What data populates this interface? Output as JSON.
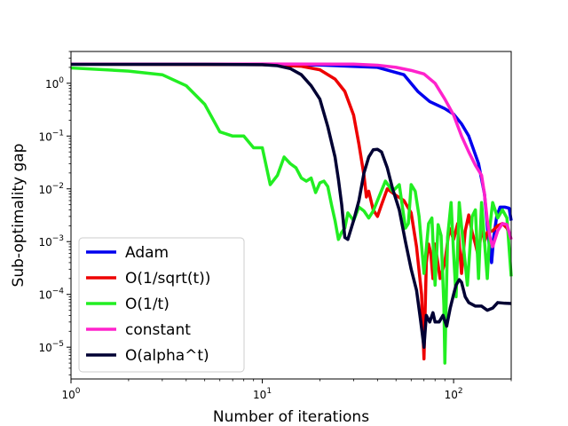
{
  "chart_data": {
    "type": "line",
    "title": "",
    "xlabel": "Number of iterations",
    "ylabel": "Sub-optimality gap",
    "xscale": "log",
    "yscale": "log",
    "xlim": [
      1,
      200
    ],
    "ylim": [
      2.5e-06,
      4
    ],
    "xticks": [
      {
        "value": 1,
        "base": "10",
        "exp": "0"
      },
      {
        "value": 10,
        "base": "10",
        "exp": "1"
      },
      {
        "value": 100,
        "base": "10",
        "exp": "2"
      }
    ],
    "yticks": [
      {
        "value": 1e-05,
        "base": "10",
        "exp": "−5"
      },
      {
        "value": 0.0001,
        "base": "10",
        "exp": "−4"
      },
      {
        "value": 0.001,
        "base": "10",
        "exp": "−3"
      },
      {
        "value": 0.01,
        "base": "10",
        "exp": "−2"
      },
      {
        "value": 0.1,
        "base": "10",
        "exp": "−1"
      },
      {
        "value": 1,
        "base": "10",
        "exp": "0"
      }
    ],
    "grid": false,
    "legend_position": "lower-left",
    "series": [
      {
        "name": "Adam",
        "color": "#0000ee",
        "points": [
          [
            1,
            2.3
          ],
          [
            5,
            2.3
          ],
          [
            10,
            2.28
          ],
          [
            20,
            2.22
          ],
          [
            40,
            2.0
          ],
          [
            55,
            1.45
          ],
          [
            65,
            0.7
          ],
          [
            75,
            0.45
          ],
          [
            90,
            0.33
          ],
          [
            100,
            0.26
          ],
          [
            110,
            0.17
          ],
          [
            120,
            0.1
          ],
          [
            135,
            0.03
          ],
          [
            145,
            0.008
          ],
          [
            150,
            0.002
          ],
          [
            155,
            0.0006
          ],
          [
            158,
            0.0004
          ],
          [
            162,
            0.0012
          ],
          [
            168,
            0.003
          ],
          [
            175,
            0.0045
          ],
          [
            185,
            0.0045
          ],
          [
            195,
            0.0043
          ],
          [
            200,
            0.0025
          ]
        ]
      },
      {
        "name": "O(1/sqrt(t))",
        "color": "#ee0000",
        "points": [
          [
            1,
            2.3
          ],
          [
            10,
            2.25
          ],
          [
            16,
            2.1
          ],
          [
            20,
            1.8
          ],
          [
            24,
            1.2
          ],
          [
            27,
            0.7
          ],
          [
            30,
            0.25
          ],
          [
            32,
            0.07
          ],
          [
            34,
            0.018
          ],
          [
            35,
            0.007
          ],
          [
            36,
            0.009
          ],
          [
            38,
            0.004
          ],
          [
            40,
            0.003
          ],
          [
            42,
            0.005
          ],
          [
            45,
            0.01
          ],
          [
            50,
            0.0075
          ],
          [
            55,
            0.006
          ],
          [
            60,
            0.0035
          ],
          [
            64,
            0.0008
          ],
          [
            68,
            0.0001
          ],
          [
            70,
            6e-06
          ],
          [
            72,
            0.0004
          ],
          [
            74,
            0.0009
          ],
          [
            76,
            0.0006
          ],
          [
            78,
            0.0002
          ],
          [
            80,
            0.0009
          ],
          [
            85,
            0.0002
          ],
          [
            90,
            0.0004
          ],
          [
            95,
            0.0018
          ],
          [
            100,
            0.0011
          ],
          [
            105,
            0.0022
          ],
          [
            110,
            0.00025
          ],
          [
            115,
            0.0016
          ],
          [
            120,
            0.0032
          ],
          [
            125,
            0.0015
          ],
          [
            130,
            0.0009
          ],
          [
            135,
            0.0005
          ],
          [
            140,
            0.002
          ],
          [
            145,
            0.001
          ],
          [
            150,
            0.0015
          ],
          [
            160,
            0.0016
          ],
          [
            170,
            0.002
          ],
          [
            180,
            0.0022
          ],
          [
            190,
            0.0018
          ],
          [
            200,
            0.0011
          ]
        ]
      },
      {
        "name": "O(1/t)",
        "color": "#22ee22",
        "points": [
          [
            1,
            1.95
          ],
          [
            2,
            1.7
          ],
          [
            3,
            1.45
          ],
          [
            4,
            0.9
          ],
          [
            5,
            0.4
          ],
          [
            6,
            0.12
          ],
          [
            7,
            0.1
          ],
          [
            8,
            0.1
          ],
          [
            9,
            0.06
          ],
          [
            10,
            0.06
          ],
          [
            11,
            0.012
          ],
          [
            12,
            0.018
          ],
          [
            13,
            0.04
          ],
          [
            14,
            0.03
          ],
          [
            15,
            0.025
          ],
          [
            16,
            0.016
          ],
          [
            17,
            0.014
          ],
          [
            18,
            0.016
          ],
          [
            19,
            0.0085
          ],
          [
            20,
            0.013
          ],
          [
            21,
            0.014
          ],
          [
            22,
            0.011
          ],
          [
            23,
            0.005
          ],
          [
            24,
            0.0025
          ],
          [
            25,
            0.0011
          ],
          [
            26,
            0.0015
          ],
          [
            27,
            0.0018
          ],
          [
            28,
            0.0035
          ],
          [
            30,
            0.0025
          ],
          [
            32,
            0.0045
          ],
          [
            34,
            0.0038
          ],
          [
            36,
            0.0028
          ],
          [
            38,
            0.0038
          ],
          [
            40,
            0.006
          ],
          [
            44,
            0.014
          ],
          [
            48,
            0.009
          ],
          [
            52,
            0.012
          ],
          [
            56,
            0.0018
          ],
          [
            58,
            0.0022
          ],
          [
            60,
            0.012
          ],
          [
            63,
            0.009
          ],
          [
            66,
            0.003
          ],
          [
            70,
            0.00025
          ],
          [
            74,
            0.0022
          ],
          [
            77,
            0.0028
          ],
          [
            80,
            0.00015
          ],
          [
            83,
            0.0021
          ],
          [
            86,
            0.0013
          ],
          [
            89,
            6e-05
          ],
          [
            90,
            5e-06
          ],
          [
            93,
            0.0012
          ],
          [
            97,
            0.0055
          ],
          [
            100,
            0.0006
          ],
          [
            103,
            9e-05
          ],
          [
            107,
            0.0055
          ],
          [
            112,
            0.001
          ],
          [
            118,
            0.00015
          ],
          [
            125,
            0.003
          ],
          [
            130,
            0.004
          ],
          [
            135,
            0.0002
          ],
          [
            140,
            0.0055
          ],
          [
            150,
            0.0002
          ],
          [
            155,
            0.002
          ],
          [
            160,
            0.0055
          ],
          [
            170,
            0.0028
          ],
          [
            180,
            0.004
          ],
          [
            190,
            0.0028
          ],
          [
            200,
            0.00022
          ]
        ]
      },
      {
        "name": "constant",
        "color": "#ff22cc",
        "points": [
          [
            1,
            2.3
          ],
          [
            10,
            2.31
          ],
          [
            30,
            2.3
          ],
          [
            40,
            2.2
          ],
          [
            50,
            2.0
          ],
          [
            60,
            1.75
          ],
          [
            70,
            1.5
          ],
          [
            80,
            1.0
          ],
          [
            90,
            0.5
          ],
          [
            100,
            0.25
          ],
          [
            110,
            0.1
          ],
          [
            120,
            0.05
          ],
          [
            130,
            0.028
          ],
          [
            140,
            0.018
          ],
          [
            145,
            0.008
          ],
          [
            150,
            0.0025
          ],
          [
            155,
            0.0012
          ],
          [
            160,
            0.0008
          ],
          [
            170,
            0.0016
          ],
          [
            180,
            0.0022
          ],
          [
            190,
            0.0021
          ],
          [
            200,
            0.0011
          ]
        ]
      },
      {
        "name": "O(alpha^t)",
        "color": "#000033",
        "points": [
          [
            1,
            2.28
          ],
          [
            5,
            2.28
          ],
          [
            10,
            2.25
          ],
          [
            12,
            2.15
          ],
          [
            14,
            1.9
          ],
          [
            16,
            1.45
          ],
          [
            18,
            0.9
          ],
          [
            20,
            0.5
          ],
          [
            22,
            0.15
          ],
          [
            24,
            0.04
          ],
          [
            25,
            0.015
          ],
          [
            26,
            0.005
          ],
          [
            27,
            0.0012
          ],
          [
            28,
            0.0011
          ],
          [
            30,
            0.0025
          ],
          [
            32,
            0.006
          ],
          [
            34,
            0.02
          ],
          [
            36,
            0.04
          ],
          [
            38,
            0.055
          ],
          [
            40,
            0.056
          ],
          [
            42,
            0.05
          ],
          [
            45,
            0.025
          ],
          [
            48,
            0.01
          ],
          [
            52,
            0.004
          ],
          [
            56,
            0.001
          ],
          [
            60,
            0.0003
          ],
          [
            64,
            0.00012
          ],
          [
            67,
            3.5e-05
          ],
          [
            70,
            1e-05
          ],
          [
            72,
            4e-05
          ],
          [
            75,
            3e-05
          ],
          [
            78,
            4.5e-05
          ],
          [
            80,
            3e-05
          ],
          [
            84,
            3e-05
          ],
          [
            88,
            4e-05
          ],
          [
            92,
            2.5e-05
          ],
          [
            96,
            5.5e-05
          ],
          [
            100,
            0.0001
          ],
          [
            103,
            0.00015
          ],
          [
            107,
            0.00019
          ],
          [
            110,
            0.00017
          ],
          [
            115,
            9e-05
          ],
          [
            120,
            7e-05
          ],
          [
            130,
            6e-05
          ],
          [
            140,
            6e-05
          ],
          [
            150,
            5e-05
          ],
          [
            160,
            5.5e-05
          ],
          [
            170,
            7e-05
          ],
          [
            185,
            6.8e-05
          ],
          [
            200,
            6.7e-05
          ]
        ]
      }
    ]
  }
}
